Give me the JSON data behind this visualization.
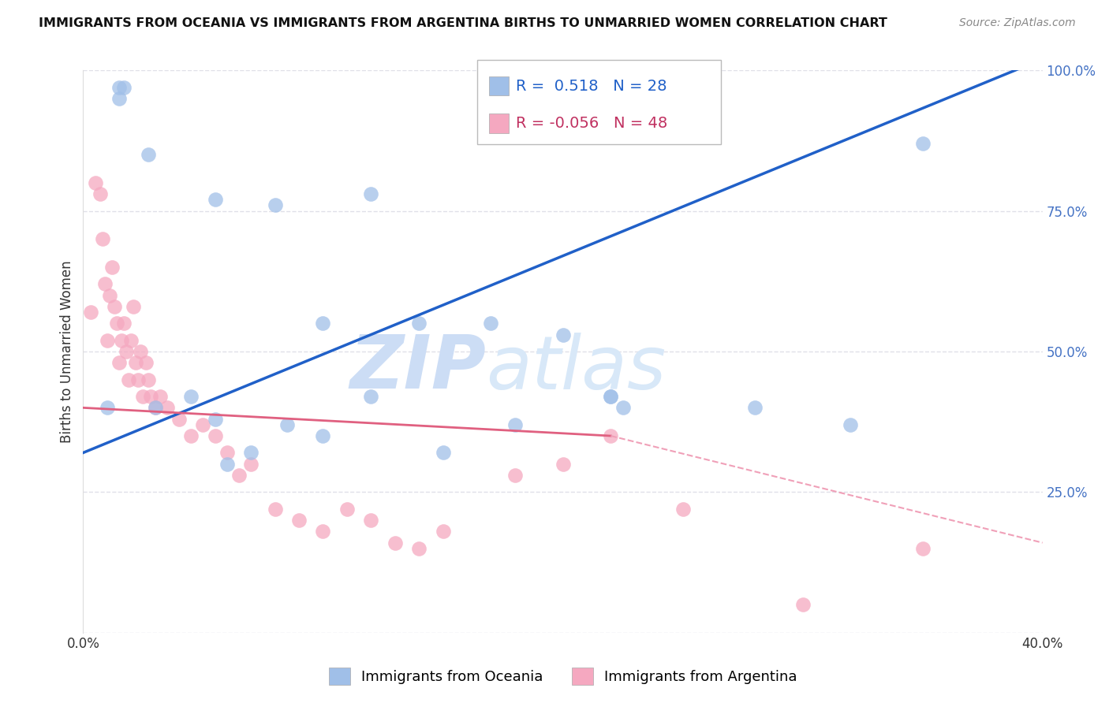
{
  "title": "IMMIGRANTS FROM OCEANIA VS IMMIGRANTS FROM ARGENTINA BIRTHS TO UNMARRIED WOMEN CORRELATION CHART",
  "source": "Source: ZipAtlas.com",
  "ylabel": "Births to Unmarried Women",
  "xlim": [
    0.0,
    40.0
  ],
  "ylim": [
    0.0,
    100.0
  ],
  "oceania_color": "#a0bfe8",
  "argentina_color": "#f5a8c0",
  "oceania_R": 0.518,
  "oceania_N": 28,
  "argentina_R": -0.056,
  "argentina_N": 48,
  "trend_oceania_color": "#2060c8",
  "trend_argentina_solid_color": "#e06080",
  "trend_argentina_dash_color": "#f0a0b8",
  "watermark_zip": "ZIP",
  "watermark_atlas": "atlas",
  "watermark_color": "#ccddf5",
  "background_color": "#ffffff",
  "grid_color": "#e0e0e8",
  "oceania_trend_x0": 0.0,
  "oceania_trend_y0": 32.0,
  "oceania_trend_x1": 40.0,
  "oceania_trend_y1": 102.0,
  "argentina_solid_x0": 0.0,
  "argentina_solid_y0": 40.0,
  "argentina_solid_x1": 22.0,
  "argentina_solid_y1": 35.0,
  "argentina_dash_x0": 22.0,
  "argentina_dash_y0": 35.0,
  "argentina_dash_x1": 40.0,
  "argentina_dash_y1": 16.0,
  "oceania_x": [
    1.5,
    1.5,
    1.7,
    2.7,
    5.5,
    8.0,
    10.0,
    12.0,
    14.0,
    17.0,
    20.0,
    22.0,
    22.5,
    35.0,
    3.0,
    4.5,
    5.5,
    7.0,
    8.5,
    10.0,
    12.0,
    15.0,
    18.0,
    22.0,
    28.0,
    32.0,
    1.0,
    6.0
  ],
  "oceania_y": [
    95.0,
    97.0,
    97.0,
    85.0,
    77.0,
    76.0,
    55.0,
    78.0,
    55.0,
    55.0,
    53.0,
    42.0,
    40.0,
    87.0,
    40.0,
    42.0,
    38.0,
    32.0,
    37.0,
    35.0,
    42.0,
    32.0,
    37.0,
    42.0,
    40.0,
    37.0,
    40.0,
    30.0
  ],
  "argentina_x": [
    0.3,
    0.5,
    0.7,
    0.8,
    0.9,
    1.0,
    1.1,
    1.2,
    1.3,
    1.4,
    1.5,
    1.6,
    1.7,
    1.8,
    1.9,
    2.0,
    2.1,
    2.2,
    2.3,
    2.4,
    2.5,
    2.6,
    2.7,
    2.8,
    3.0,
    3.2,
    3.5,
    4.0,
    4.5,
    5.0,
    5.5,
    6.0,
    6.5,
    7.0,
    8.0,
    9.0,
    10.0,
    11.0,
    12.0,
    13.0,
    14.0,
    15.0,
    18.0,
    20.0,
    22.0,
    25.0,
    30.0,
    35.0
  ],
  "argentina_y": [
    57.0,
    80.0,
    78.0,
    70.0,
    62.0,
    52.0,
    60.0,
    65.0,
    58.0,
    55.0,
    48.0,
    52.0,
    55.0,
    50.0,
    45.0,
    52.0,
    58.0,
    48.0,
    45.0,
    50.0,
    42.0,
    48.0,
    45.0,
    42.0,
    40.0,
    42.0,
    40.0,
    38.0,
    35.0,
    37.0,
    35.0,
    32.0,
    28.0,
    30.0,
    22.0,
    20.0,
    18.0,
    22.0,
    20.0,
    16.0,
    15.0,
    18.0,
    28.0,
    30.0,
    35.0,
    22.0,
    5.0,
    15.0
  ]
}
